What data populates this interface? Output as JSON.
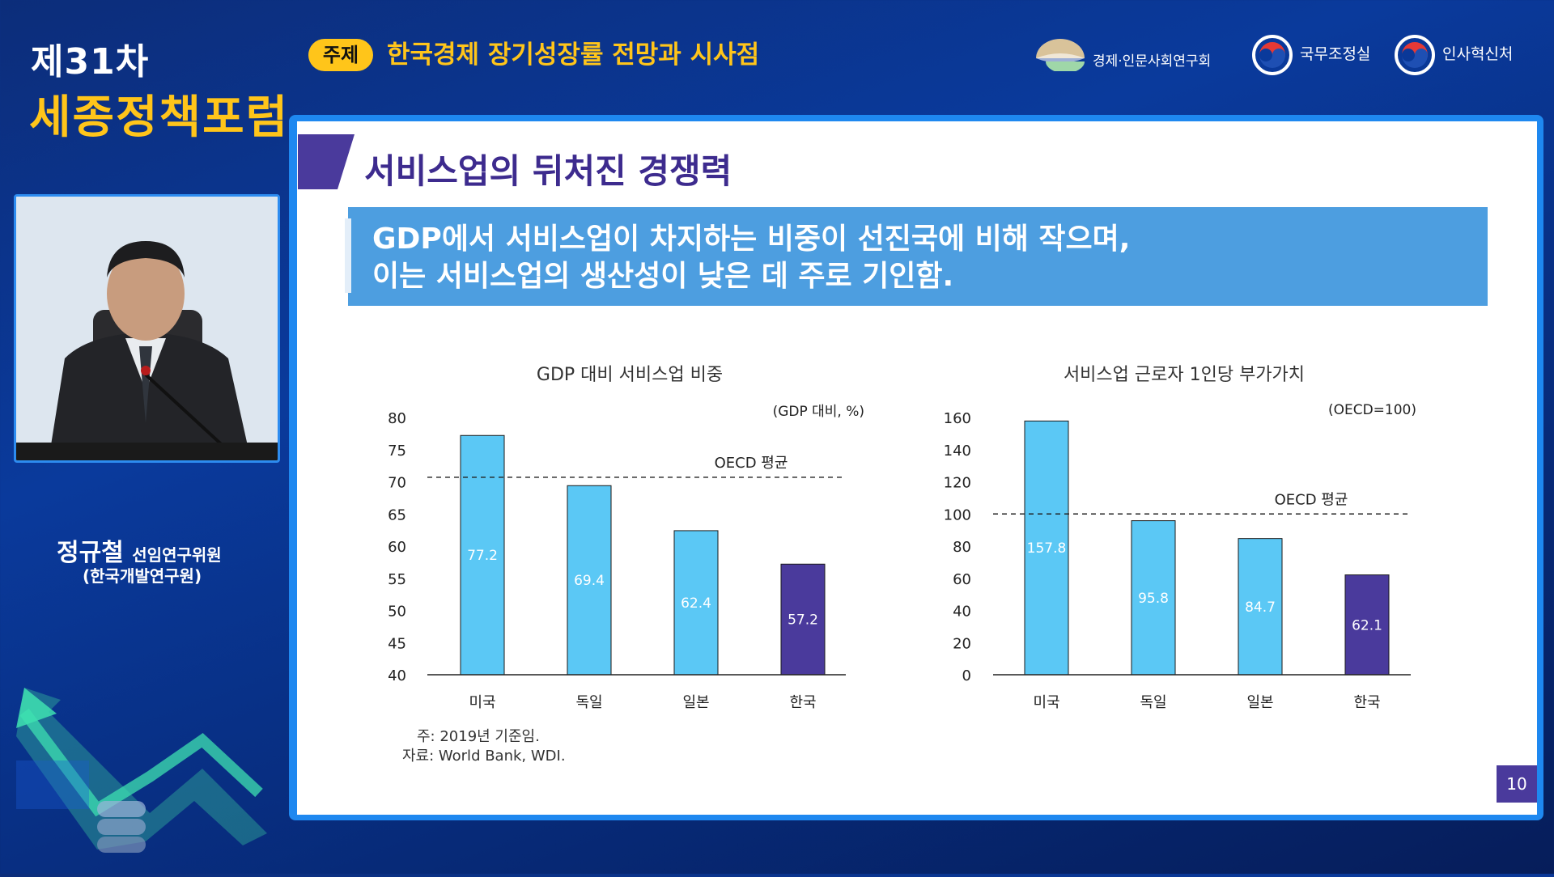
{
  "header": {
    "forum_number": "제31차",
    "forum_name": "세종정책포럼",
    "topic_badge": "주제",
    "topic_title": "한국경제 장기성장률 전망과 시사점",
    "logos": [
      "경제·인문사회연구회",
      "국무조정실",
      "인사혁신처"
    ]
  },
  "speaker": {
    "name": "정규철",
    "position": "선임연구위원",
    "org": "(한국개발연구원)"
  },
  "slide": {
    "title": "서비스업의 뒤처진 경쟁력",
    "summary_line1": "GDP에서 서비스업이 차지하는 비중이 선진국에 비해 작으며,",
    "summary_line2": "이는 서비스업의 생산성이 낮은 데 주로 기인함.",
    "note": "주: 2019년 기준임.",
    "source": "자료: World Bank, WDI.",
    "page_number": "10"
  },
  "colors": {
    "bar": "#5bc8f5",
    "highlight": "#4a3a9c",
    "title": "#3d2b8e",
    "summary_bg": "#4d9ee0",
    "accent_yellow": "#ffc51a"
  },
  "chart_data": [
    {
      "type": "bar",
      "title": "GDP 대비 서비스업 비중",
      "unit_note": "(GDP 대비, %)",
      "categories": [
        "미국",
        "독일",
        "일본",
        "한국"
      ],
      "values": [
        77.2,
        69.4,
        62.4,
        57.2
      ],
      "value_labels": [
        "77.2",
        "69.4",
        "62.4",
        "57.2"
      ],
      "highlight_index": 3,
      "ylim": [
        40,
        80
      ],
      "yticks": [
        40,
        45,
        50,
        55,
        60,
        65,
        70,
        75,
        80
      ],
      "reference_line": {
        "label": "OECD 평균",
        "value": 70.7
      }
    },
    {
      "type": "bar",
      "title": "서비스업 근로자 1인당 부가가치",
      "unit_note": "(OECD=100)",
      "categories": [
        "미국",
        "독일",
        "일본",
        "한국"
      ],
      "values": [
        157.8,
        95.8,
        84.7,
        62.1
      ],
      "value_labels": [
        "157.8",
        "95.8",
        "84.7",
        "62.1"
      ],
      "highlight_index": 3,
      "ylim": [
        0,
        160
      ],
      "yticks": [
        0,
        20,
        40,
        60,
        80,
        100,
        120,
        140,
        160
      ],
      "reference_line": {
        "label": "OECD 평균",
        "value": 100
      }
    }
  ]
}
